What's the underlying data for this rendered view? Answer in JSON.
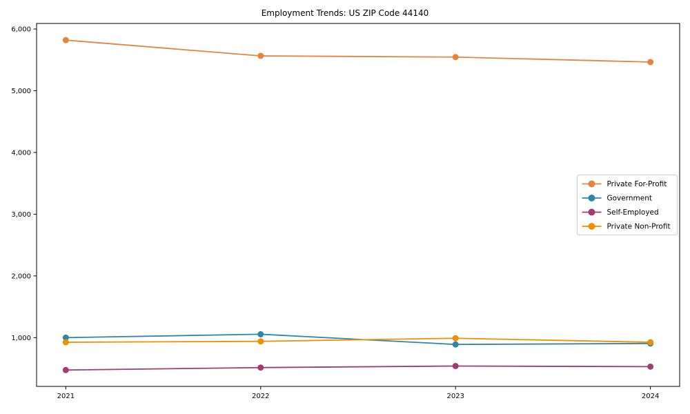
{
  "chart_data": {
    "type": "line",
    "title": "Employment Trends: US ZIP Code 44140",
    "xlabel": "",
    "ylabel": "",
    "categories": [
      "2021",
      "2022",
      "2023",
      "2024"
    ],
    "series": [
      {
        "name": "Private For-Profit",
        "color": "#E8833A",
        "values": [
          5820,
          5565,
          5545,
          5465
        ]
      },
      {
        "name": "Government",
        "color": "#2E86AB",
        "values": [
          1000,
          1055,
          890,
          905
        ]
      },
      {
        "name": "Self-Employed",
        "color": "#A23B72",
        "values": [
          475,
          515,
          540,
          530
        ]
      },
      {
        "name": "Private Non-Profit",
        "color": "#F18F01",
        "values": [
          925,
          940,
          990,
          925
        ]
      }
    ],
    "yticks": [
      1000,
      2000,
      3000,
      4000,
      5000,
      6000
    ],
    "ytick_labels": [
      "1,000",
      "2,000",
      "3,000",
      "4,000",
      "5,000",
      "6,000"
    ],
    "ylim": [
      210,
      6090
    ],
    "grid": false,
    "marker": "o",
    "legend_position": "center right",
    "legend_border_color": "#cccccc",
    "axis_color": "#000000",
    "background_color": "#ffffff"
  }
}
